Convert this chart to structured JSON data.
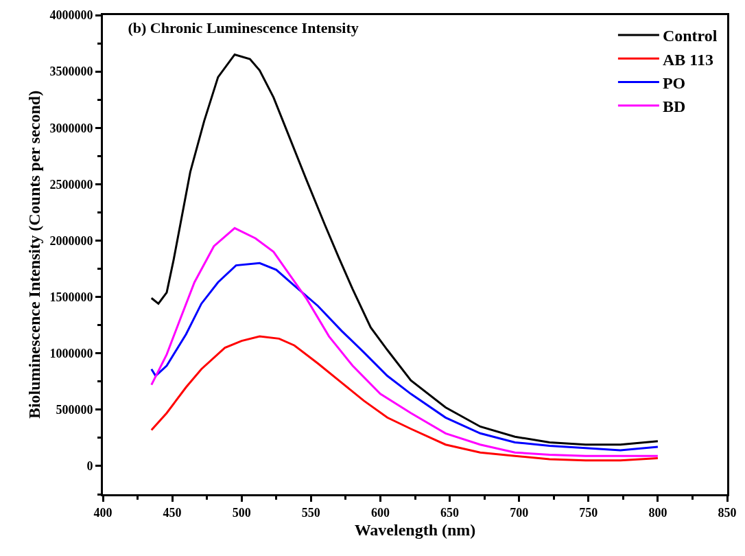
{
  "chart_data": {
    "type": "line",
    "title": "(b) Chronic Luminescence Intensity",
    "xlabel": "Wavelength (nm)",
    "ylabel": "Bioluminescence Intensity (Counts per second)",
    "xlim": [
      400,
      850
    ],
    "xticks": [
      400,
      450,
      500,
      550,
      600,
      650,
      700,
      750,
      800,
      850
    ],
    "ylim": [
      -250000,
      4000000
    ],
    "yticks": [
      0,
      500000,
      1000000,
      1500000,
      2000000,
      2500000,
      3000000,
      3500000,
      4000000
    ],
    "legend": "top right",
    "marker": "none",
    "line_style": "solid",
    "series": [
      {
        "name": "Control",
        "color": "#000000",
        "x": [
          435,
          440,
          446,
          451,
          463,
          473,
          483,
          495,
          506,
          513,
          523,
          535,
          547,
          560,
          570,
          580,
          593,
          605,
          622,
          647,
          672,
          697,
          722,
          748,
          773,
          800
        ],
        "values": [
          1490000,
          1440000,
          1540000,
          1830000,
          2610000,
          3060000,
          3450000,
          3650000,
          3610000,
          3510000,
          3270000,
          2900000,
          2530000,
          2140000,
          1850000,
          1570000,
          1230000,
          1030000,
          760000,
          520000,
          350000,
          260000,
          210000,
          190000,
          190000,
          220000
        ]
      },
      {
        "name": "AB 113",
        "color": "#ff0000",
        "x": [
          435,
          446,
          460,
          471,
          488,
          500,
          513,
          527,
          538,
          555,
          572,
          588,
          605,
          622,
          647,
          672,
          697,
          722,
          748,
          773,
          800
        ],
        "values": [
          320000,
          470000,
          700000,
          860000,
          1050000,
          1110000,
          1150000,
          1130000,
          1070000,
          910000,
          740000,
          580000,
          430000,
          330000,
          190000,
          120000,
          90000,
          60000,
          50000,
          50000,
          70000
        ]
      },
      {
        "name": "PO",
        "color": "#0000ff",
        "x": [
          435,
          438,
          446,
          460,
          471,
          483,
          496,
          513,
          525,
          538,
          555,
          572,
          588,
          605,
          622,
          647,
          672,
          697,
          722,
          748,
          773,
          800
        ],
        "values": [
          860000,
          800000,
          890000,
          1170000,
          1440000,
          1630000,
          1780000,
          1800000,
          1740000,
          1600000,
          1420000,
          1200000,
          1010000,
          800000,
          640000,
          430000,
          290000,
          210000,
          180000,
          160000,
          140000,
          170000
        ]
      },
      {
        "name": "BD",
        "color": "#ff00ff",
        "x": [
          435,
          446,
          455,
          466,
          480,
          495,
          510,
          523,
          535,
          547,
          563,
          580,
          600,
          622,
          647,
          672,
          697,
          722,
          748,
          773,
          800
        ],
        "values": [
          720000,
          990000,
          1280000,
          1630000,
          1950000,
          2110000,
          2020000,
          1900000,
          1690000,
          1480000,
          1150000,
          890000,
          640000,
          470000,
          290000,
          190000,
          120000,
          100000,
          90000,
          90000,
          90000
        ]
      }
    ]
  }
}
